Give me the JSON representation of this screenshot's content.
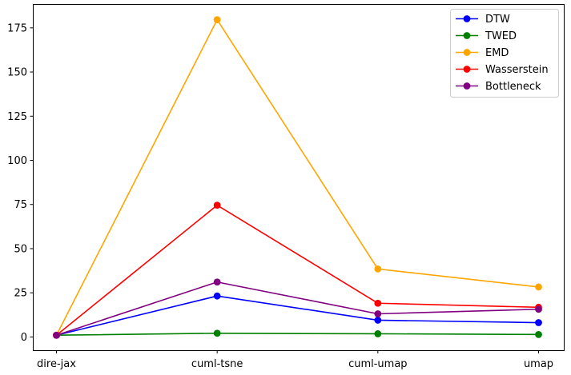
{
  "chart_data": {
    "type": "line",
    "title": "",
    "xlabel": "",
    "ylabel": "",
    "categories": [
      "dire-jax",
      "cuml-tsne",
      "cuml-umap",
      "umap"
    ],
    "ylim": [
      -7.5,
      188.5
    ],
    "yticks": [
      0,
      25,
      50,
      75,
      100,
      125,
      150,
      175
    ],
    "grid": false,
    "legend_position": "top-right",
    "marker": "circle",
    "series": [
      {
        "name": "DTW",
        "color": "#0000ff",
        "values": [
          1.0,
          23.2,
          9.5,
          8.1
        ]
      },
      {
        "name": "TWED",
        "color": "#008000",
        "values": [
          1.0,
          2.1,
          1.8,
          1.4
        ]
      },
      {
        "name": "EMD",
        "color": "#ffa500",
        "values": [
          1.0,
          179.6,
          38.5,
          28.3
        ]
      },
      {
        "name": "Wasserstein",
        "color": "#ff0000",
        "values": [
          1.0,
          74.6,
          19.1,
          16.8
        ]
      },
      {
        "name": "Bottleneck",
        "color": "#800080",
        "values": [
          1.0,
          31.1,
          13.1,
          15.7
        ]
      }
    ]
  }
}
